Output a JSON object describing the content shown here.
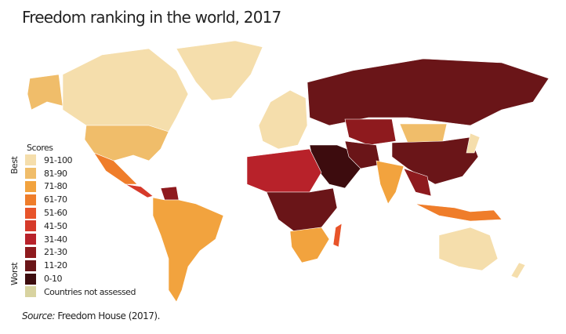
{
  "title": "Freedom ranking in the world, 2017",
  "legend": {
    "heading": "Scores",
    "best_label": "Best",
    "worst_label": "Worst",
    "items": [
      {
        "label": "91-100",
        "color": "#f5deac"
      },
      {
        "label": "81-90",
        "color": "#f0bd6a"
      },
      {
        "label": "71-80",
        "color": "#f2a33e"
      },
      {
        "label": "61-70",
        "color": "#ef7d2a"
      },
      {
        "label": "51-60",
        "color": "#e8542a"
      },
      {
        "label": "41-50",
        "color": "#d63a2a"
      },
      {
        "label": "31-40",
        "color": "#b8222a"
      },
      {
        "label": "21-30",
        "color": "#8e1a1e"
      },
      {
        "label": "11-20",
        "color": "#6a1518"
      },
      {
        "label": "0-10",
        "color": "#3d0c0e"
      },
      {
        "label": "Countries not assessed",
        "color": "#d8d3a0"
      }
    ]
  },
  "source": {
    "prefix": "Source:",
    "text": " Freedom House (2017)."
  }
}
